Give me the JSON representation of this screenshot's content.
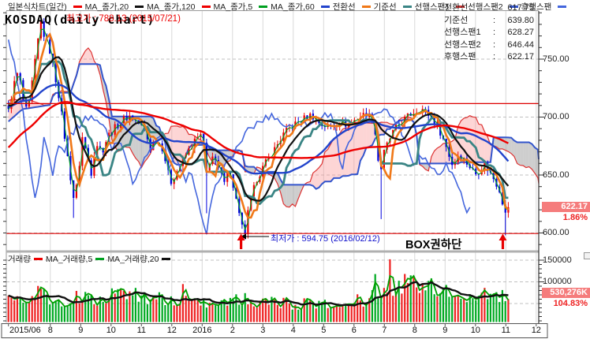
{
  "header": {
    "title": "KOSDAQ(daily chart)",
    "high_annotation": "최고가 : 788.13 (2015/07/21)",
    "chart_type_label": "일본식차트(일간)",
    "legend": [
      {
        "label": "일본식차트(일간)",
        "color": "#ee0000"
      },
      {
        "label": "MA_종가,20",
        "color": "#111111"
      },
      {
        "label": "MA_종가,120",
        "color": "#ee0000"
      },
      {
        "label": "MA_종가,5",
        "color": "#00a020"
      },
      {
        "label": "MA_종가,60",
        "color": "#2244cc"
      },
      {
        "label": "전환선",
        "color": "#f07818"
      },
      {
        "label": "기준선",
        "color": "#3a8585"
      },
      {
        "label": "선행스팬1",
        "color": "#dd3333"
      },
      {
        "label": "선행스팬2",
        "color": "#3355cc"
      },
      {
        "label": "후행스팬",
        "color": "#4466dd"
      }
    ]
  },
  "info_panel": {
    "rows": [
      {
        "label": "전환선",
        "value": "617.75"
      },
      {
        "label": "기준선",
        "value": "639.80"
      },
      {
        "label": "선행스팬1",
        "value": "628.27"
      },
      {
        "label": "선행스팬2",
        "value": "646.44"
      },
      {
        "label": "후행스팬",
        "value": "622.17"
      }
    ]
  },
  "volume_legend": [
    {
      "label": "거래량",
      "color": "#ee0000"
    },
    {
      "label": "MA_거래량,5",
      "color": "#00a020"
    },
    {
      "label": "MA_거래량,20",
      "color": "#111111"
    }
  ],
  "price_axis": {
    "tick_labels": [
      "750.00",
      "700.00",
      "650.00",
      "600.00"
    ],
    "current": {
      "label": "622.17",
      "value": 622.17,
      "change": "1.86%"
    }
  },
  "volume_axis": {
    "tick_labels": [
      "150000",
      "100000",
      "50000"
    ],
    "current": {
      "label": "530,276K",
      "change": "104.83%"
    }
  },
  "x_axis": {
    "labels": [
      {
        "text": "2015/06",
        "m": 0.62
      },
      {
        "text": "8",
        "m": 2
      },
      {
        "text": "9",
        "m": 3
      },
      {
        "text": "10",
        "m": 4
      },
      {
        "text": "11",
        "m": 5
      },
      {
        "text": "12",
        "m": 6
      },
      {
        "text": "2016",
        "m": 7
      },
      {
        "text": "2",
        "m": 8
      },
      {
        "text": "3",
        "m": 9
      },
      {
        "text": "4",
        "m": 10
      },
      {
        "text": "5",
        "m": 11
      },
      {
        "text": "6",
        "m": 12
      },
      {
        "text": "7",
        "m": 13
      },
      {
        "text": "8",
        "m": 14
      },
      {
        "text": "9",
        "m": 15
      },
      {
        "text": "10",
        "m": 16
      },
      {
        "text": "11",
        "m": 17
      },
      {
        "text": "12",
        "m": 18
      }
    ]
  },
  "annotations": {
    "low": "최저가 : 594.75 (2016/02/12)",
    "box": "BOX권하단",
    "hlines": [
      711.6,
      599.5
    ],
    "arrow_months": [
      8.28,
      16.9
    ]
  },
  "colors": {
    "candle_up": "#ee0000",
    "candle_down": "#0000dd",
    "ma5": "#00a020",
    "ma20": "#111111",
    "ma60": "#2244cc",
    "ma120": "#ee0000",
    "tenkan": "#f07818",
    "kijun": "#3a8585",
    "spanA": "#dd3333",
    "spanB": "#3355cc",
    "chikou": "#4466dd",
    "cloud_bull": "rgba(250,150,150,0.40)",
    "cloud_bear": "rgba(165,165,165,0.55)",
    "vol_up": "#ee2222",
    "vol_down": "#00aa22",
    "vol_ma5": "#00a000",
    "vol_ma20": "#111111",
    "grid": "#d8d8d8",
    "grid_dash": "#c0c0c0",
    "frame": "#999999",
    "axis": "#333333",
    "hline": "#dd0000",
    "arrow": "#e80000",
    "badge_bg": "#f57c7c"
  },
  "chart_data": {
    "type": "candlestick",
    "title": "KOSDAQ(daily chart)",
    "x_unit": "months since 2015-06-01",
    "range_m": [
      0.62,
      17.08
    ],
    "n_candles": 170,
    "ylim": [
      585,
      795
    ],
    "price_ticks": [
      600,
      650,
      700,
      750
    ],
    "vol_ticks": [
      50000,
      100000,
      150000
    ],
    "high_point": {
      "date": "2015/07/21",
      "value": 788.13
    },
    "low_point": {
      "date": "2016/02/12",
      "value": 594.75
    },
    "last_close": 622.17,
    "last_change_pct": -1.86,
    "pre_anchors": [
      [
        -5,
        560
      ],
      [
        -3.5,
        645
      ],
      [
        -2.5,
        692
      ],
      [
        -1.5,
        700
      ],
      [
        -0.7,
        722
      ],
      [
        0,
        712
      ],
      [
        0.62,
        705
      ]
    ],
    "price_anchors": [
      [
        0.62,
        705
      ],
      [
        0.8,
        728
      ],
      [
        0.95,
        740
      ],
      [
        1.1,
        715
      ],
      [
        1.25,
        702
      ],
      [
        1.5,
        748
      ],
      [
        1.68,
        783
      ],
      [
        1.8,
        770
      ],
      [
        2.0,
        756
      ],
      [
        2.3,
        716
      ],
      [
        2.55,
        668
      ],
      [
        2.78,
        628
      ],
      [
        2.9,
        645
      ],
      [
        3.05,
        683
      ],
      [
        3.2,
        668
      ],
      [
        3.35,
        652
      ],
      [
        3.5,
        678
      ],
      [
        3.7,
        670
      ],
      [
        3.9,
        684
      ],
      [
        4.1,
        690
      ],
      [
        4.35,
        697
      ],
      [
        4.6,
        701
      ],
      [
        4.85,
        696
      ],
      [
        5.1,
        689
      ],
      [
        5.3,
        673
      ],
      [
        5.5,
        681
      ],
      [
        5.7,
        673
      ],
      [
        5.95,
        643
      ],
      [
        6.2,
        655
      ],
      [
        6.5,
        669
      ],
      [
        6.8,
        681
      ],
      [
        7.0,
        685
      ],
      [
        7.15,
        652
      ],
      [
        7.3,
        668
      ],
      [
        7.5,
        657
      ],
      [
        7.7,
        645
      ],
      [
        7.85,
        656
      ],
      [
        8.05,
        638
      ],
      [
        8.25,
        610
      ],
      [
        8.4,
        598
      ],
      [
        8.55,
        624
      ],
      [
        8.8,
        647
      ],
      [
        9.1,
        661
      ],
      [
        9.4,
        673
      ],
      [
        9.7,
        686
      ],
      [
        10.0,
        693
      ],
      [
        10.3,
        698
      ],
      [
        10.6,
        702
      ],
      [
        10.9,
        694
      ],
      [
        11.2,
        691
      ],
      [
        11.5,
        697
      ],
      [
        11.8,
        693
      ],
      [
        12.1,
        699
      ],
      [
        12.4,
        703
      ],
      [
        12.65,
        697
      ],
      [
        12.85,
        650
      ],
      [
        13.0,
        671
      ],
      [
        13.3,
        688
      ],
      [
        13.6,
        697
      ],
      [
        13.9,
        703
      ],
      [
        14.2,
        708
      ],
      [
        14.5,
        701
      ],
      [
        14.75,
        693
      ],
      [
        15.0,
        677
      ],
      [
        15.25,
        658
      ],
      [
        15.45,
        669
      ],
      [
        15.7,
        661
      ],
      [
        16.0,
        651
      ],
      [
        16.3,
        659
      ],
      [
        16.6,
        647
      ],
      [
        16.8,
        637
      ],
      [
        17.0,
        614
      ],
      [
        17.08,
        622.17
      ]
    ],
    "wick_overrides": [
      {
        "m": 1.68,
        "high": 788.13
      },
      {
        "m": 2.78,
        "low": 613
      },
      {
        "m": 7.15,
        "low": 617
      },
      {
        "m": 8.4,
        "low": 594.75
      },
      {
        "m": 12.85,
        "low": 612
      },
      {
        "m": 17.0,
        "low": 598
      }
    ],
    "ma_windows_days": [
      5,
      20,
      60,
      120
    ],
    "ichimoku_params": {
      "tenkan": 9,
      "kijun": 26,
      "senkou": 52,
      "displacement": 26
    },
    "steps_per_day": 0.485,
    "volume_anchors": [
      [
        0.62,
        55000
      ],
      [
        1.0,
        60000
      ],
      [
        1.5,
        68000
      ],
      [
        1.7,
        74000
      ],
      [
        2.0,
        62000
      ],
      [
        2.5,
        59000
      ],
      [
        2.8,
        71000
      ],
      [
        3.2,
        62000
      ],
      [
        3.6,
        57000
      ],
      [
        4.0,
        64000
      ],
      [
        4.5,
        71000
      ],
      [
        5.0,
        66000
      ],
      [
        5.5,
        62000
      ],
      [
        6.0,
        56000
      ],
      [
        6.4,
        60000
      ],
      [
        6.8,
        55000
      ],
      [
        7.2,
        52000
      ],
      [
        7.6,
        56000
      ],
      [
        8.0,
        54000
      ],
      [
        8.4,
        61000
      ],
      [
        8.8,
        56000
      ],
      [
        9.2,
        52000
      ],
      [
        9.6,
        50000
      ],
      [
        10.0,
        48000
      ],
      [
        10.5,
        52000
      ],
      [
        11.0,
        46000
      ],
      [
        11.5,
        50000
      ],
      [
        12.0,
        55000
      ],
      [
        12.5,
        61000
      ],
      [
        12.85,
        74000
      ],
      [
        13.15,
        86000
      ],
      [
        13.5,
        92000
      ],
      [
        13.9,
        99000
      ],
      [
        14.2,
        97000
      ],
      [
        14.5,
        89000
      ],
      [
        14.9,
        78000
      ],
      [
        15.3,
        68000
      ],
      [
        15.7,
        63000
      ],
      [
        16.0,
        66000
      ],
      [
        16.4,
        71000
      ],
      [
        16.7,
        67000
      ],
      [
        17.0,
        62000
      ],
      [
        17.08,
        58000
      ]
    ],
    "volume_spikes": [
      [
        4.0,
        85000
      ],
      [
        6.4,
        95000
      ],
      [
        12.7,
        118000
      ],
      [
        13.15,
        152000
      ],
      [
        13.9,
        115000
      ]
    ]
  }
}
